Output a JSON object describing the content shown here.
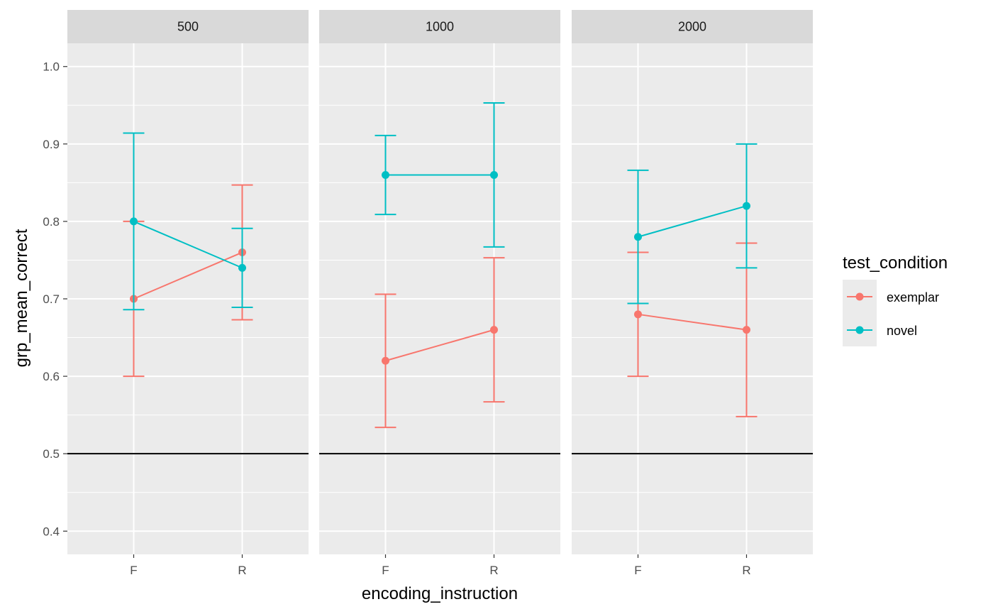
{
  "chart_data": {
    "type": "line",
    "facet_labels": [
      "500",
      "1000",
      "2000"
    ],
    "categories": [
      "F",
      "R"
    ],
    "xlabel": "encoding_instruction",
    "ylabel": "grp_mean_correct",
    "ylim": [
      0.37,
      1.03
    ],
    "yticks": [
      0.4,
      0.5,
      0.6,
      0.7,
      0.8,
      0.9,
      1.0
    ],
    "ytick_labels": [
      "0.4",
      "0.5",
      "0.6",
      "0.7",
      "0.8",
      "0.9",
      "1.0"
    ],
    "reference_line": 0.5,
    "grid": true,
    "legend": {
      "title": "test_condition",
      "position": "right",
      "entries": [
        "exemplar",
        "novel"
      ]
    },
    "series": [
      {
        "name": "exemplar",
        "color": "#F8766D",
        "panels": [
          {
            "facet": "500",
            "values": [
              0.7,
              0.76
            ],
            "lower": [
              0.6,
              0.673
            ],
            "upper": [
              0.8,
              0.847
            ]
          },
          {
            "facet": "1000",
            "values": [
              0.62,
              0.66
            ],
            "lower": [
              0.534,
              0.567
            ],
            "upper": [
              0.706,
              0.753
            ]
          },
          {
            "facet": "2000",
            "values": [
              0.68,
              0.66
            ],
            "lower": [
              0.6,
              0.548
            ],
            "upper": [
              0.76,
              0.772
            ]
          }
        ]
      },
      {
        "name": "novel",
        "color": "#00BFC4",
        "panels": [
          {
            "facet": "500",
            "values": [
              0.8,
              0.74
            ],
            "lower": [
              0.686,
              0.689
            ],
            "upper": [
              0.914,
              0.791
            ]
          },
          {
            "facet": "1000",
            "values": [
              0.86,
              0.86
            ],
            "lower": [
              0.809,
              0.767
            ],
            "upper": [
              0.911,
              0.953
            ]
          },
          {
            "facet": "2000",
            "values": [
              0.78,
              0.82
            ],
            "lower": [
              0.694,
              0.74
            ],
            "upper": [
              0.866,
              0.9
            ]
          }
        ]
      }
    ]
  }
}
